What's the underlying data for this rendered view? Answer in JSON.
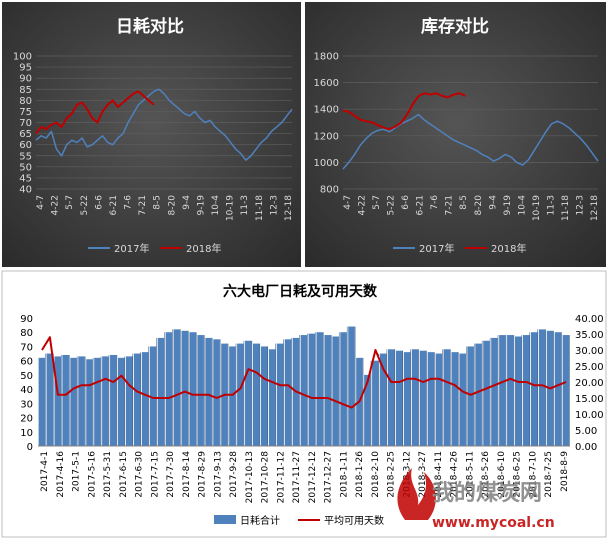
{
  "colors": {
    "series_2017": "#4f81bd",
    "series_2018": "#c00000",
    "bars": "#4f81bd",
    "line_days": "#c00000",
    "text": "#d9d9d9",
    "background": "#3a3a3a"
  },
  "chart_data": [
    {
      "type": "line",
      "title": "日耗对比",
      "ylim": [
        40,
        100
      ],
      "yticks": [
        40,
        45,
        50,
        55,
        60,
        65,
        70,
        75,
        80,
        85,
        90,
        95,
        100
      ],
      "x_tick_labels": [
        "4-7",
        "4-22",
        "5-7",
        "5-22",
        "6-6",
        "6-21",
        "7-6",
        "7-21",
        "8-5",
        "8-20",
        "9-4",
        "9-19",
        "10-4",
        "10-19",
        "11-3",
        "11-18",
        "12-3",
        "12-18"
      ],
      "grid": true,
      "legend": "bottom",
      "series": [
        {
          "name": "2017年",
          "values": [
            62,
            64,
            63,
            66,
            58,
            55,
            60,
            62,
            61,
            63,
            59,
            60,
            62,
            64,
            61,
            60,
            63,
            65,
            70,
            74,
            78,
            80,
            82,
            84,
            85,
            83,
            80,
            78,
            76,
            74,
            73,
            75,
            72,
            70,
            71,
            68,
            66,
            64,
            61,
            58,
            56,
            53,
            55,
            58,
            61,
            63,
            66,
            68,
            70,
            73,
            76
          ]
        },
        {
          "name": "2018年",
          "values": [
            65,
            68,
            67,
            69,
            70,
            68,
            72,
            74,
            78,
            79,
            76,
            72,
            70,
            75,
            78,
            80,
            77,
            79,
            81,
            83,
            84,
            82,
            80,
            78
          ]
        }
      ]
    },
    {
      "type": "line",
      "title": "库存对比",
      "ylim": [
        800,
        1800
      ],
      "yticks": [
        800,
        1000,
        1200,
        1400,
        1600,
        1800
      ],
      "x_tick_labels": [
        "4-7",
        "4-22",
        "5-7",
        "5-22",
        "6-6",
        "6-21",
        "7-6",
        "7-21",
        "8-5",
        "8-20",
        "9-4",
        "9-19",
        "10-4",
        "10-19",
        "11-3",
        "11-18",
        "12-3",
        "12-18"
      ],
      "grid": true,
      "legend": "bottom",
      "series": [
        {
          "name": "2017年",
          "values": [
            950,
            1000,
            1060,
            1130,
            1180,
            1220,
            1240,
            1250,
            1230,
            1260,
            1290,
            1310,
            1330,
            1360,
            1320,
            1290,
            1260,
            1230,
            1200,
            1170,
            1150,
            1130,
            1110,
            1090,
            1060,
            1040,
            1010,
            1030,
            1060,
            1040,
            1000,
            980,
            1020,
            1090,
            1160,
            1230,
            1290,
            1310,
            1290,
            1260,
            1220,
            1180,
            1130,
            1070,
            1010
          ]
        },
        {
          "name": "2018年",
          "values": [
            1390,
            1380,
            1350,
            1320,
            1310,
            1300,
            1280,
            1260,
            1250,
            1270,
            1300,
            1360,
            1440,
            1500,
            1520,
            1510,
            1520,
            1500,
            1490,
            1510,
            1520,
            1500
          ]
        }
      ]
    },
    {
      "type": "bar",
      "title": "六大电厂日耗及可用天数",
      "ylim": [
        0,
        90
      ],
      "yticks": [
        0,
        10,
        20,
        30,
        40,
        50,
        60,
        70,
        80,
        90
      ],
      "y2lim": [
        0,
        40
      ],
      "y2ticks": [
        "0.00",
        "5.00",
        "10.00",
        "15.00",
        "20.00",
        "25.00",
        "30.00",
        "35.00",
        "40.00"
      ],
      "x_tick_labels": [
        "2017-4-1",
        "2017-4-16",
        "2017-5-1",
        "2017-5-16",
        "2017-5-31",
        "2017-6-15",
        "2017-6-30",
        "2017-7-15",
        "2017-7-30",
        "2017-8-14",
        "2017-8-29",
        "2017-9-13",
        "2017-9-28",
        "2017-10-13",
        "2017-10-28",
        "2017-11-12",
        "2017-11-27",
        "2017-12-12",
        "2017-12-27",
        "2018-1-11",
        "2018-1-26",
        "2018-2-10",
        "2018-2-25",
        "2018-3-12",
        "2018-3-27",
        "2018-4-11",
        "2018-4-26",
        "2018-5-11",
        "2018-5-26",
        "2018-6-10",
        "2018-6-25",
        "2018-7-10",
        "2018-7-25",
        "2018-8-9"
      ],
      "legend": "bottom",
      "series": [
        {
          "name": "日耗合计",
          "axis": "left",
          "values": [
            62,
            65,
            63,
            64,
            62,
            63,
            61,
            62,
            63,
            64,
            62,
            63,
            65,
            66,
            70,
            76,
            80,
            82,
            81,
            80,
            78,
            76,
            75,
            72,
            70,
            72,
            74,
            72,
            70,
            68,
            72,
            75,
            76,
            78,
            79,
            80,
            78,
            77,
            80,
            84,
            62,
            50,
            60,
            65,
            68,
            67,
            66,
            68,
            67,
            66,
            65,
            68,
            66,
            65,
            70,
            72,
            74,
            76,
            78,
            78,
            77,
            78,
            80,
            82,
            81,
            80,
            78
          ]
        },
        {
          "name": "平均可用天数",
          "axis": "right",
          "values": [
            30,
            34,
            16,
            16,
            18,
            19,
            19,
            20,
            21,
            20,
            22,
            19,
            17,
            16,
            15,
            15,
            15,
            16,
            17,
            16,
            16,
            16,
            15,
            16,
            16,
            18,
            24,
            23,
            21,
            20,
            19,
            19,
            17,
            16,
            15,
            15,
            15,
            14,
            13,
            12,
            14,
            20,
            30,
            24,
            20,
            20,
            21,
            21,
            20,
            21,
            21,
            20,
            19,
            17,
            16,
            17,
            18,
            19,
            20,
            21,
            20,
            20,
            19,
            19,
            18,
            19,
            20
          ]
        }
      ]
    }
  ],
  "watermark": {
    "brand": "我的煤炭网",
    "url": "www.mycoal.cn"
  }
}
